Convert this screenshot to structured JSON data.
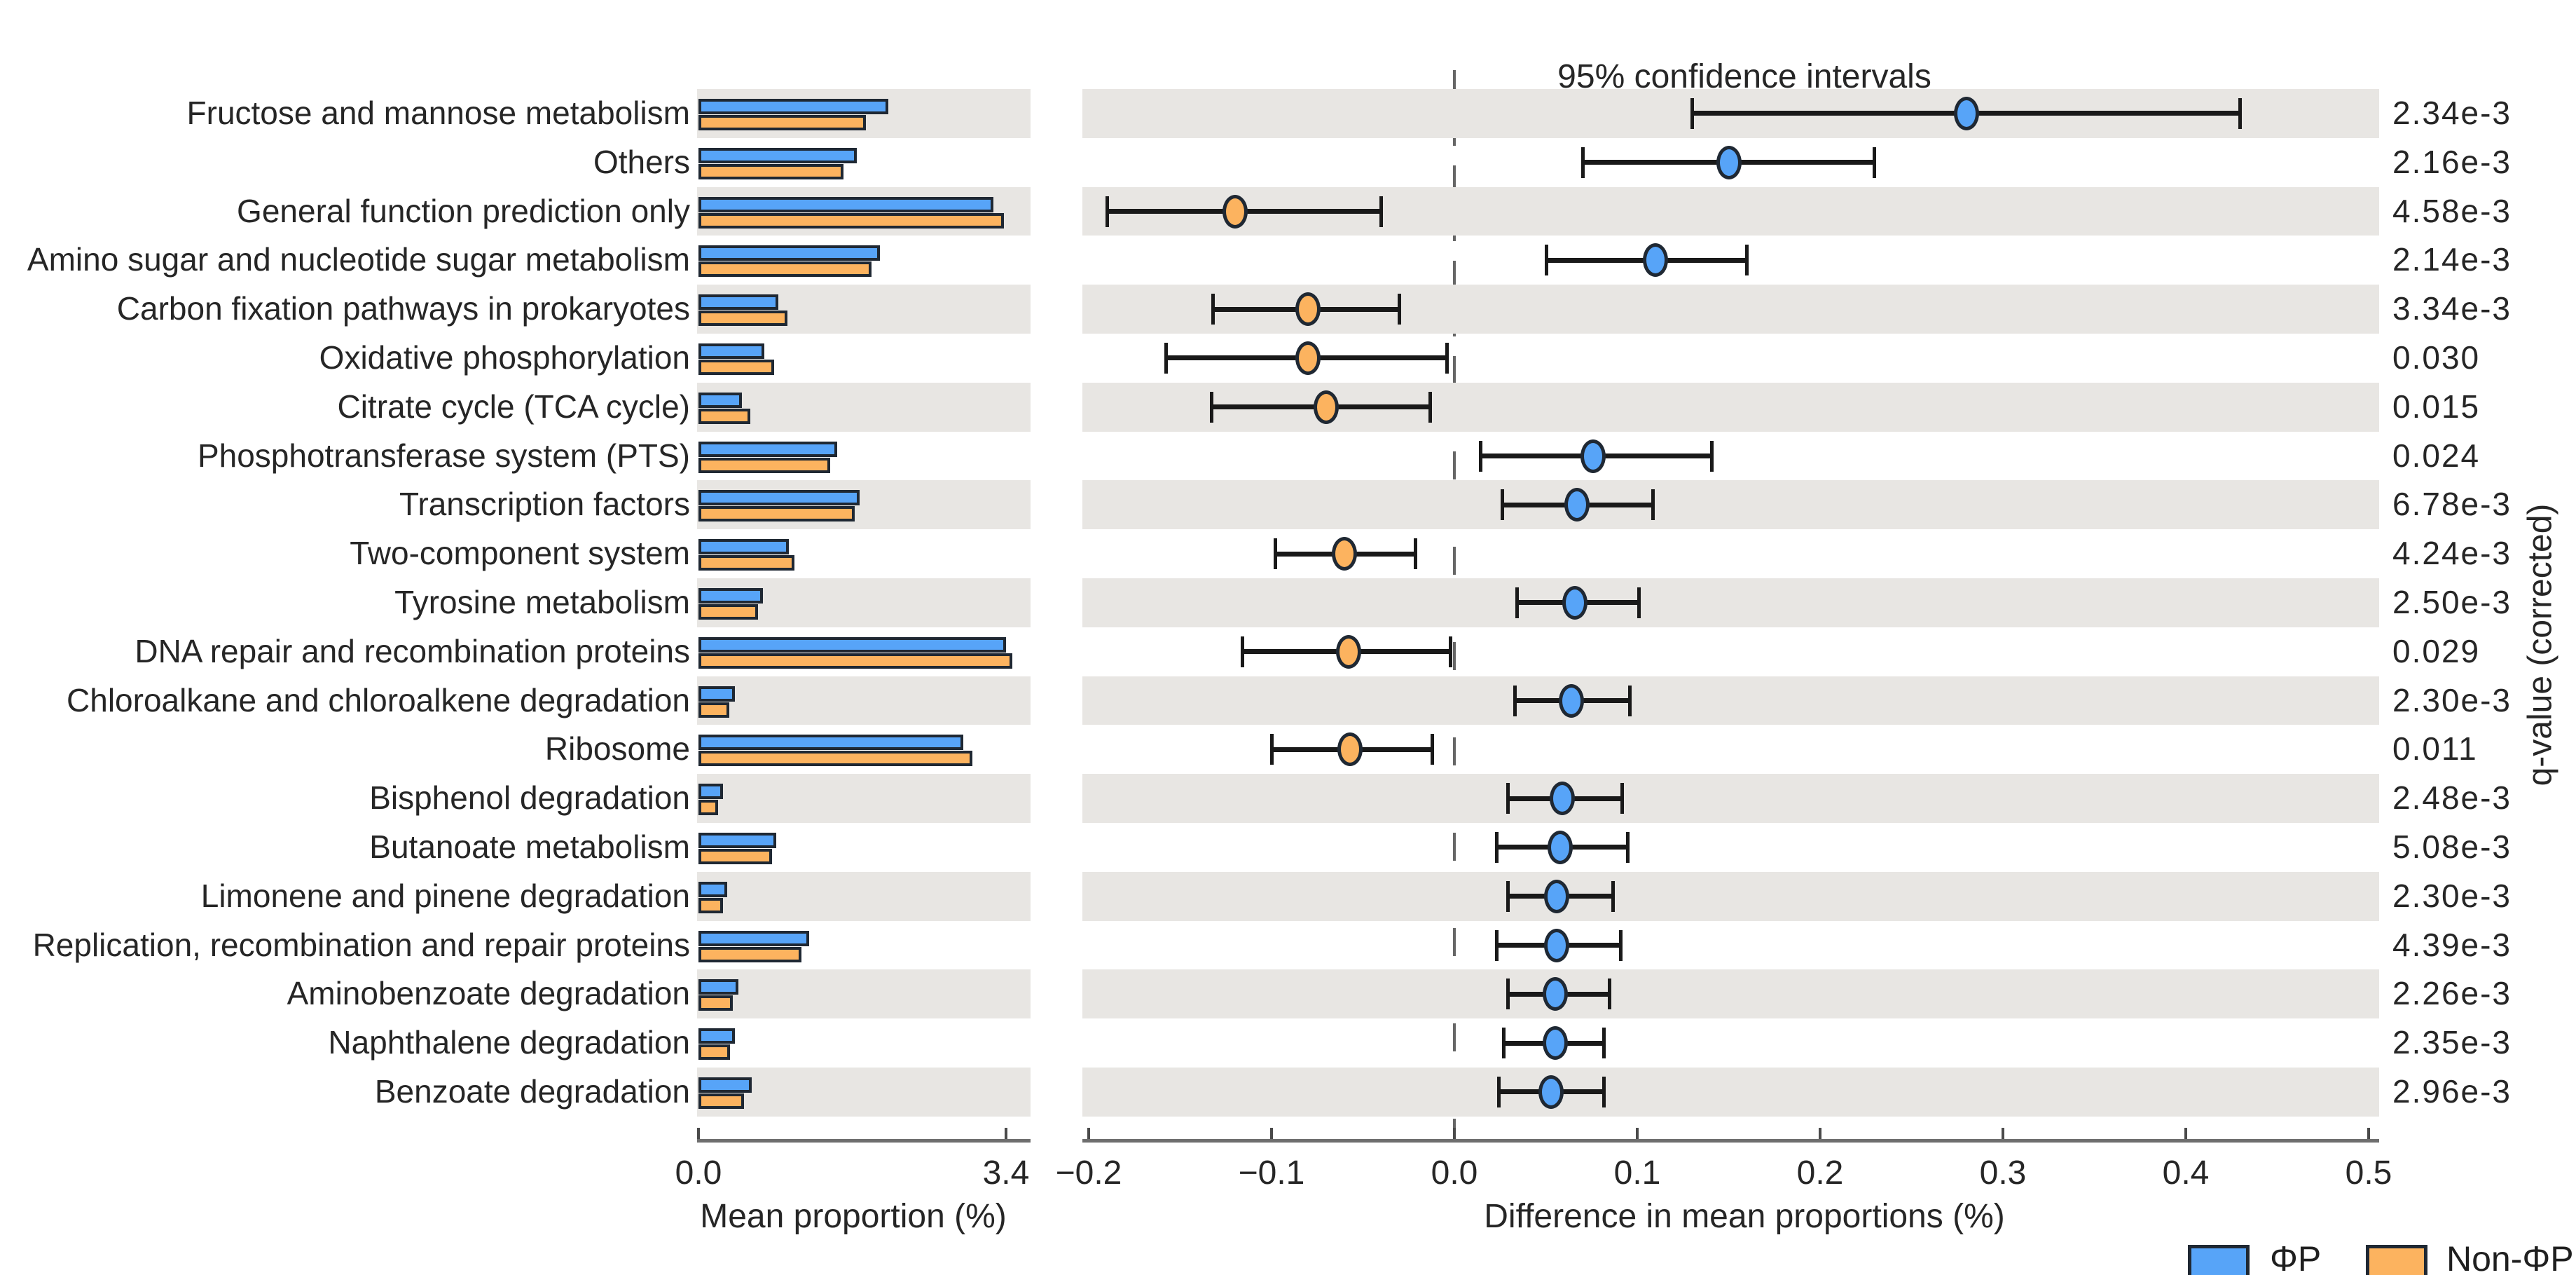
{
  "title": "95% confidence intervals",
  "left_axis": {
    "label": "Mean proportion (%)",
    "ticks": [
      "0.0",
      "3.4"
    ],
    "tick_values": [
      0.0,
      3.4
    ],
    "max": 3.4
  },
  "right_axis": {
    "label": "Difference in mean proportions (%)",
    "ticks": [
      "−0.2",
      "−0.1",
      "0.0",
      "0.1",
      "0.2",
      "0.3",
      "0.4",
      "0.5"
    ],
    "tick_values": [
      -0.2,
      -0.1,
      0.0,
      0.1,
      0.2,
      0.3,
      0.4,
      0.5
    ],
    "min": -0.2,
    "max": 0.5
  },
  "qvalue_axis_label": "q-value (corrected)",
  "legend": [
    {
      "label": "ΦP",
      "color": "#57a4f8"
    },
    {
      "label": "Non-ΦP",
      "color": "#fcb35f"
    }
  ],
  "colors": {
    "phip_blue": "#57a4f8",
    "nonphip_orange": "#fcb35f",
    "border_dark": "#1f2833",
    "band_gray": "#e8e6e3",
    "errorbar_black": "#191919",
    "zero_line_gray": "#666666",
    "axis_gray": "#6e6e6e",
    "text": "#262626"
  },
  "chart_data": {
    "type": "extended_error_bar",
    "title": "95% confidence intervals",
    "xlabel_bars": "Mean proportion (%)",
    "xlabel_diff": "Difference in mean proportions (%)",
    "bar_axis_range": [
      0.0,
      3.4
    ],
    "diff_axis_range": [
      -0.2,
      0.5
    ],
    "grid": false,
    "legend_position": "bottom-right",
    "categories": [
      "Fructose and mannose metabolism",
      "Others",
      "General function prediction only",
      "Amino sugar and nucleotide sugar metabolism",
      "Carbon fixation pathways in prokaryotes",
      "Oxidative phosphorylation",
      "Citrate cycle (TCA cycle)",
      "Phosphotransferase system (PTS)",
      "Transcription factors",
      "Two-component system",
      "Tyrosine metabolism",
      "DNA repair and recombination proteins",
      "Chloroalkane and chloroalkene degradation",
      "Ribosome",
      "Bisphenol degradation",
      "Butanoate metabolism",
      "Limonene and pinene degradation",
      "Replication, recombination and repair proteins",
      "Aminobenzoate degradation",
      "Naphthalene degradation",
      "Benzoate degradation"
    ],
    "series": [
      {
        "name": "ΦP",
        "metric": "mean_proportion_pct",
        "values": [
          2.1,
          1.75,
          3.26,
          2.01,
          0.88,
          0.73,
          0.48,
          1.53,
          1.78,
          1.0,
          0.71,
          3.4,
          0.4,
          2.93,
          0.27,
          0.86,
          0.32,
          1.22,
          0.44,
          0.4,
          0.59
        ]
      },
      {
        "name": "Non-ΦP",
        "metric": "mean_proportion_pct",
        "values": [
          1.85,
          1.6,
          3.38,
          1.91,
          0.98,
          0.84,
          0.57,
          1.46,
          1.73,
          1.06,
          0.66,
          3.47,
          0.34,
          3.03,
          0.22,
          0.81,
          0.27,
          1.14,
          0.38,
          0.35,
          0.5
        ]
      },
      {
        "name": "Difference in mean proportions (ΦP − Non-ΦP)",
        "metric": "difference_pct",
        "values": [
          0.28,
          0.15,
          -0.12,
          0.11,
          -0.08,
          -0.08,
          -0.07,
          0.076,
          0.067,
          -0.06,
          0.066,
          -0.058,
          0.064,
          -0.057,
          0.059,
          0.058,
          0.056,
          0.056,
          0.055,
          0.055,
          0.053
        ],
        "ci_low": [
          0.13,
          0.07,
          -0.19,
          0.05,
          -0.132,
          -0.158,
          -0.133,
          0.014,
          0.026,
          -0.098,
          0.034,
          -0.116,
          0.033,
          -0.1,
          0.029,
          0.023,
          0.029,
          0.023,
          0.029,
          0.027,
          0.024
        ],
        "ci_high": [
          0.43,
          0.23,
          -0.04,
          0.16,
          -0.03,
          -0.004,
          -0.013,
          0.141,
          0.109,
          -0.021,
          0.101,
          -0.002,
          0.096,
          -0.012,
          0.092,
          0.095,
          0.087,
          0.091,
          0.085,
          0.082,
          0.082
        ]
      }
    ],
    "q_values": [
      "2.34e-3",
      "2.16e-3",
      "4.58e-3",
      "2.14e-3",
      "3.34e-3",
      "0.030",
      "0.015",
      "0.024",
      "6.78e-3",
      "4.24e-3",
      "2.50e-3",
      "0.029",
      "2.30e-3",
      "0.011",
      "2.48e-3",
      "5.08e-3",
      "2.30e-3",
      "4.39e-3",
      "2.26e-3",
      "2.35e-3",
      "2.96e-3"
    ],
    "ylabel_right": "q-value (corrected)"
  }
}
